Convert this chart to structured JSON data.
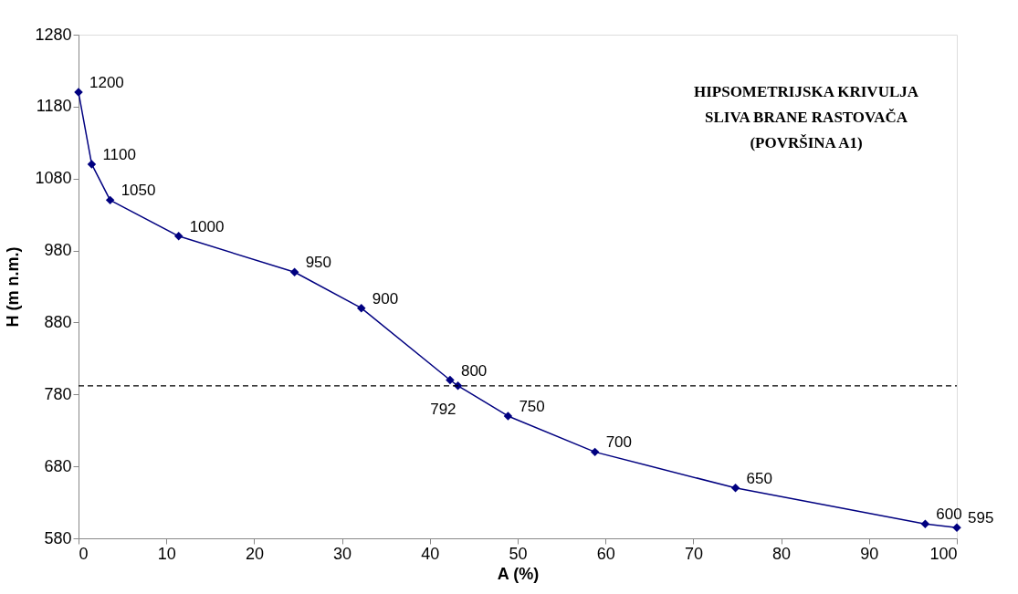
{
  "chart_data": {
    "type": "line",
    "title": "HIPSOMETRIJSKA KRIVULJA\nSLIVA BRANE RASTOVAČA\n(POVRŠINA A1)",
    "xlabel": "A (%)",
    "ylabel": "H (m n.m.)",
    "x": [
      0,
      1.5,
      3.6,
      11.4,
      24.6,
      32.2,
      42.3,
      43.2,
      48.9,
      58.8,
      74.8,
      96.4,
      100
    ],
    "series": [
      {
        "color": "#000080",
        "values": [
          1200,
          1100,
          1050,
          1000,
          950,
          900,
          800,
          792,
          750,
          700,
          650,
          600,
          595
        ]
      }
    ],
    "xlim": [
      0,
      100
    ],
    "xticks": [
      0,
      10,
      20,
      30,
      40,
      50,
      60,
      70,
      80,
      90,
      100
    ],
    "ylim": [
      580,
      1280
    ],
    "yticks": [
      580,
      680,
      780,
      880,
      980,
      1080,
      1180,
      1280
    ],
    "ref_lines": [
      {
        "axis": "y",
        "value": 792,
        "color": "#000000",
        "line_style": "dashed"
      }
    ],
    "data_labels": true,
    "marker": "diamond",
    "line_style": "solid",
    "grid": false
  }
}
